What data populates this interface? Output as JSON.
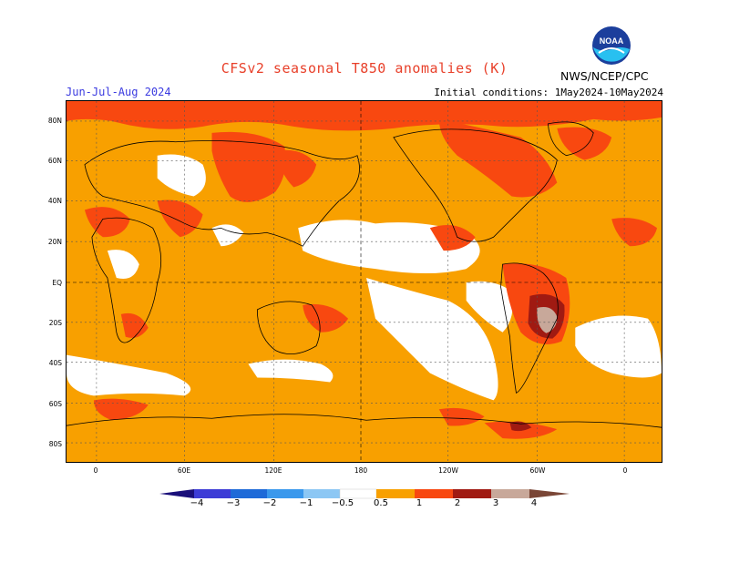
{
  "header": {
    "title": "CFSv2 seasonal T850 anomalies (K)",
    "period": "Jun-Jul-Aug 2024",
    "initial_conditions": "Initial conditions: 1May2024-10May2024",
    "agency": "NWS/NCEP/CPC",
    "logo_text": "NOAA"
  },
  "map": {
    "lat_labels": [
      "80N",
      "60N",
      "40N",
      "20N",
      "EQ",
      "20S",
      "40S",
      "60S",
      "80S"
    ],
    "lon_labels": [
      "0",
      "60E",
      "120E",
      "180",
      "120W",
      "60W",
      "0"
    ]
  },
  "legend": {
    "labels": [
      "−4",
      "−3",
      "−2",
      "−1",
      "−0.5",
      "0.5",
      "1",
      "2",
      "3",
      "4"
    ],
    "colors": {
      "lt_-4": "#1a0f7a",
      "-4_-3": "#3d3cd6",
      "-3_-2": "#1e6ad8",
      "-2_-1": "#3a98ec",
      "-1_-0.5": "#8cc7f4",
      "-0.5_0.5": "#ffffff",
      "0.5_1": "#f8a000",
      "1_2": "#f84810",
      "2_3": "#a01a12",
      "3_4": "#c8a89a",
      "gt_4": "#7a4636"
    }
  }
}
